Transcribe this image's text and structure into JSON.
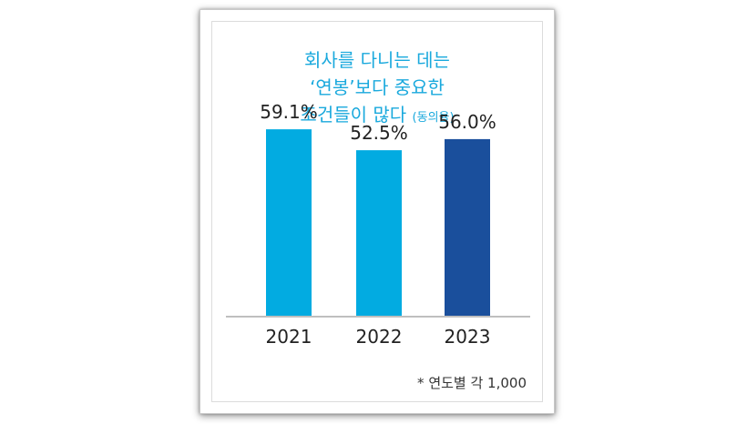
{
  "title": {
    "line1": "회사를 다니는 데는",
    "line2": "‘연봉’보다 중요한",
    "line3": "조건들이 많다",
    "note": "(동의율)"
  },
  "footnote": "* 연도별 각 1,000",
  "chart_data": {
    "type": "bar",
    "categories": [
      "2021",
      "2022",
      "2023"
    ],
    "values": [
      59.1,
      52.5,
      56.0
    ],
    "value_labels": [
      "59.1%",
      "52.5%",
      "56.0%"
    ],
    "colors": [
      "#02ABE1",
      "#02ABE1",
      "#1A4F9C"
    ],
    "ylim": [
      0,
      62
    ],
    "title": "회사를 다니는 데는 ‘연봉’보다 중요한 조건들이 많다 (동의율)"
  }
}
